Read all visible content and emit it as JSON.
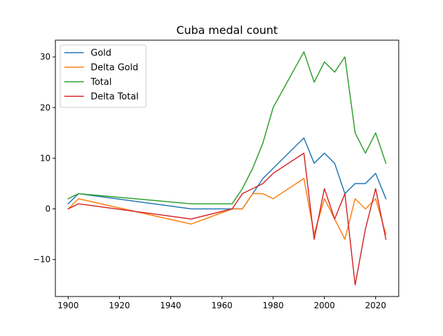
{
  "chart_data": {
    "type": "line",
    "title": "Cuba medal count",
    "xlabel": "",
    "ylabel": "",
    "xlim": [
      1895,
      2029
    ],
    "ylim": [
      -17.3,
      33.3
    ],
    "x_ticks": [
      1900,
      1920,
      1940,
      1960,
      1980,
      2000,
      2020
    ],
    "y_ticks": [
      -10,
      0,
      10,
      20,
      30
    ],
    "grid": false,
    "legend": "top-left",
    "series": [
      {
        "name": "Gold",
        "color": "#1f77b4",
        "x": [
          1900,
          1904,
          1948,
          1964,
          1968,
          1972,
          1976,
          1980,
          1992,
          1996,
          2000,
          2004,
          2008,
          2012,
          2016,
          2020,
          2024
        ],
        "y": [
          1,
          3,
          0,
          0,
          0,
          3,
          6,
          8,
          14,
          9,
          11,
          9,
          3,
          5,
          5,
          7,
          2
        ]
      },
      {
        "name": "Delta Gold",
        "color": "#ff7f0e",
        "x": [
          1900,
          1904,
          1948,
          1964,
          1968,
          1972,
          1976,
          1980,
          1992,
          1996,
          2000,
          2004,
          2008,
          2012,
          2016,
          2020,
          2024
        ],
        "y": [
          0,
          2,
          -3,
          0,
          0,
          3,
          3,
          2,
          6,
          -5,
          2,
          -2,
          -6,
          2,
          0,
          2,
          -5
        ]
      },
      {
        "name": "Total",
        "color": "#2ca02c",
        "x": [
          1900,
          1904,
          1948,
          1964,
          1968,
          1972,
          1976,
          1980,
          1992,
          1996,
          2000,
          2004,
          2008,
          2012,
          2016,
          2020,
          2024
        ],
        "y": [
          2,
          3,
          1,
          1,
          4,
          8,
          13,
          20,
          31,
          25,
          29,
          27,
          30,
          15,
          11,
          15,
          9
        ]
      },
      {
        "name": "Delta Total",
        "color": "#d62728",
        "x": [
          1900,
          1904,
          1948,
          1964,
          1968,
          1972,
          1976,
          1980,
          1992,
          1996,
          2000,
          2004,
          2008,
          2012,
          2016,
          2020,
          2024
        ],
        "y": [
          0,
          1,
          -2,
          0,
          3,
          4,
          5,
          7,
          11,
          -6,
          4,
          -2,
          3,
          -15,
          -4,
          4,
          -6
        ]
      }
    ]
  }
}
